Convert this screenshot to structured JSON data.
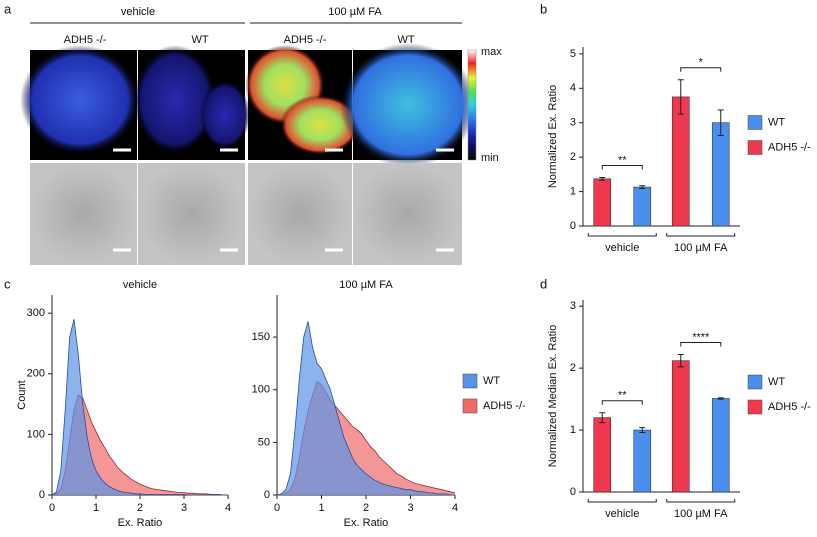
{
  "panel_labels": [
    "a",
    "b",
    "c",
    "d"
  ],
  "image_panel": {
    "conditions": [
      "vehicle",
      "100 µM FA"
    ],
    "genotypes": [
      "ADH5 -/-",
      "WT",
      "ADH5 -/-",
      "WT"
    ],
    "colorbar": {
      "max": "max",
      "min": "min"
    }
  },
  "chart_data": [
    {
      "type": "bar",
      "ylabel": "Normalized Ex. Ratio",
      "categories": [
        "vehicle",
        "100 µM FA"
      ],
      "series": [
        {
          "name": "WT",
          "color": "#4a8ef0",
          "values": [
            1.13,
            3.0
          ],
          "errors": [
            0.04,
            0.37
          ]
        },
        {
          "name": "ADH5 -/-",
          "color": "#f0384f",
          "values": [
            1.37,
            3.75
          ],
          "errors": [
            0.04,
            0.5
          ]
        }
      ],
      "ylim": [
        0,
        5.2
      ],
      "yticks": [
        0,
        1,
        2,
        3,
        4,
        5
      ],
      "annotations": [
        "**",
        "*"
      ],
      "legend": "right"
    },
    {
      "type": "area",
      "title": "vehicle",
      "xlabel": "Ex. Ratio",
      "ylabel": "Count",
      "x": [
        0,
        0.1,
        0.2,
        0.3,
        0.4,
        0.5,
        0.6,
        0.7,
        0.8,
        0.9,
        1,
        1.1,
        1.2,
        1.3,
        1.4,
        1.5,
        1.6,
        1.7,
        1.8,
        1.9,
        2,
        2.1,
        2.2,
        2.3,
        2.4,
        2.5,
        2.6,
        2.7,
        2.8,
        2.9,
        3,
        3.1,
        3.2,
        3.3,
        3.4,
        3.5,
        3.6,
        3.7,
        3.8,
        3.9,
        4
      ],
      "series": [
        {
          "name": "WT",
          "color": "#5a93e6",
          "values": [
            0,
            5,
            40,
            140,
            260,
            290,
            230,
            150,
            95,
            60,
            40,
            28,
            20,
            14,
            10,
            7,
            5,
            4,
            3,
            2,
            2,
            1,
            1,
            1,
            1,
            1,
            1,
            1,
            1,
            1,
            1,
            0,
            0,
            0,
            0,
            0,
            0,
            0,
            0,
            0,
            0
          ]
        },
        {
          "name": "ADH5 -/-",
          "color": "#f06a6a",
          "values": [
            0,
            2,
            10,
            40,
            90,
            140,
            165,
            160,
            140,
            120,
            105,
            90,
            78,
            65,
            55,
            45,
            38,
            32,
            26,
            22,
            18,
            15,
            12,
            10,
            9,
            8,
            7,
            6,
            5,
            4,
            4,
            3,
            3,
            2,
            2,
            2,
            1,
            1,
            1,
            0,
            0
          ]
        }
      ],
      "xlim": [
        0,
        4
      ],
      "xticks": [
        0,
        1,
        2,
        3,
        4
      ],
      "ylim": [
        0,
        330
      ],
      "yticks": [
        0,
        100,
        200,
        300
      ]
    },
    {
      "type": "area",
      "title": "100 µM FA",
      "xlabel": "Ex. Ratio",
      "x": [
        0,
        0.1,
        0.2,
        0.3,
        0.4,
        0.5,
        0.6,
        0.7,
        0.8,
        0.9,
        1,
        1.1,
        1.2,
        1.3,
        1.4,
        1.5,
        1.6,
        1.7,
        1.8,
        1.9,
        2,
        2.1,
        2.2,
        2.3,
        2.4,
        2.5,
        2.6,
        2.7,
        2.8,
        2.9,
        3,
        3.1,
        3.2,
        3.3,
        3.4,
        3.5,
        3.6,
        3.7,
        3.8,
        3.9,
        4
      ],
      "series": [
        {
          "name": "WT",
          "color": "#5a93e6",
          "values": [
            0,
            1,
            5,
            20,
            60,
            110,
            150,
            165,
            140,
            125,
            120,
            110,
            100,
            85,
            70,
            55,
            45,
            35,
            28,
            24,
            20,
            17,
            14,
            12,
            10,
            9,
            8,
            7,
            6,
            5,
            5,
            4,
            3,
            3,
            2,
            2,
            1,
            1,
            1,
            0,
            0
          ]
        },
        {
          "name": "ADH5 -/-",
          "color": "#f06a6a",
          "values": [
            0,
            0,
            2,
            5,
            15,
            35,
            60,
            80,
            95,
            108,
            105,
            98,
            90,
            85,
            80,
            75,
            70,
            65,
            62,
            58,
            52,
            46,
            42,
            36,
            32,
            28,
            24,
            20,
            18,
            15,
            13,
            11,
            10,
            9,
            8,
            7,
            6,
            5,
            4,
            3,
            2
          ]
        }
      ],
      "xlim": [
        0,
        4
      ],
      "xticks": [
        0,
        1,
        2,
        3,
        4
      ],
      "ylim": [
        0,
        190
      ],
      "yticks": [
        0,
        50,
        100,
        150
      ],
      "legend": "right"
    },
    {
      "type": "bar",
      "ylabel": "Normalized Median Ex. Ratio",
      "categories": [
        "vehicle",
        "100 µM FA"
      ],
      "series": [
        {
          "name": "WT",
          "color": "#4a8ef0",
          "values": [
            1.0,
            1.51
          ],
          "errors": [
            0.04,
            0.01
          ]
        },
        {
          "name": "ADH5 -/-",
          "color": "#f0384f",
          "values": [
            1.2,
            2.12
          ],
          "errors": [
            0.08,
            0.1
          ]
        }
      ],
      "ylim": [
        0,
        3.1
      ],
      "yticks": [
        0,
        1,
        2,
        3
      ],
      "annotations": [
        "**",
        "****"
      ],
      "legend": "right"
    }
  ]
}
